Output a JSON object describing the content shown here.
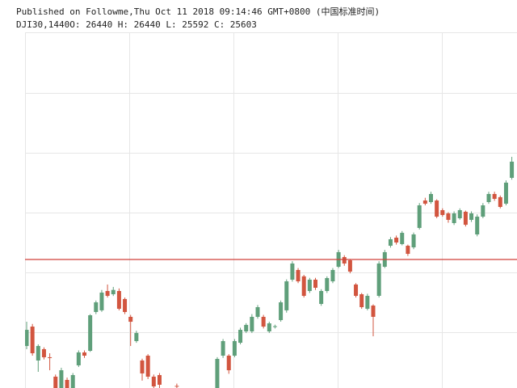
{
  "chart_data": {
    "type": "candlestick",
    "title": "Published on Followme,Thu Oct 11 2018 09:14:46 GMT+0800 (中国标准时间)",
    "symbol": "DJI30,1440",
    "summary": [
      {
        "label": "O:",
        "value": 26440
      },
      {
        "label": "H:",
        "value": 26440
      },
      {
        "label": "L:",
        "value": 25592
      },
      {
        "label": "C:",
        "value": 25603
      }
    ],
    "up_color": "#5f9f7a",
    "down_color": "#d2553f",
    "price_line_color": "#d0403a",
    "ylim": [
      23902,
      28610
    ],
    "open": [
      24458,
      24715,
      24266,
      24416,
      24309,
      24052,
      23880,
      24009,
      23880,
      24202,
      24373,
      24394,
      24908,
      24930,
      25186,
      25143,
      25186,
      25080,
      24844,
      24523,
      24266,
      24330,
      24052,
      24073,
      null,
      null,
      23930,
      null,
      null,
      null,
      null,
      null,
      null,
      23880,
      24330,
      24330,
      24330,
      24501,
      24651,
      24651,
      24844,
      24844,
      24651,
      24715,
      24801,
      24930,
      25336,
      25464,
      25380,
      25186,
      25336,
      25015,
      25186,
      25314,
      25507,
      25635,
      25593,
      25272,
      25143,
      24951,
      24993,
      25122,
      25507,
      25785,
      25892,
      25807,
      25785,
      25764,
      26021,
      26384,
      26363,
      26384,
      26256,
      26213,
      26085,
      26149,
      26235,
      26128,
      25935,
      26170,
      26363,
      26470,
      26428,
      26342,
      26684
    ],
    "high": [
      24779,
      24750,
      24480,
      24440,
      24362,
      24080,
      24170,
      24040,
      24100,
      24400,
      24400,
      24880,
      25060,
      25200,
      25272,
      25240,
      25220,
      25100,
      24870,
      24660,
      24290,
      24350,
      24080,
      24100,
      null,
      null,
      23960,
      null,
      null,
      null,
      null,
      null,
      null,
      24310,
      24550,
      24350,
      24550,
      24700,
      24760,
      24880,
      25000,
      24870,
      24780,
      24740,
      25060,
      25340,
      25580,
      25490,
      25400,
      25360,
      25360,
      25210,
      25380,
      25490,
      25730,
      25660,
      25610,
      25290,
      25160,
      25150,
      25010,
      25580,
      25730,
      25900,
      25920,
      25980,
      25800,
      25960,
      26350,
      26420,
      26500,
      26400,
      26280,
      26230,
      26240,
      26280,
      26250,
      26240,
      26200,
      26350,
      26500,
      26500,
      26450,
      26650,
      26962
    ],
    "low": [
      24416,
      24330,
      24116,
      24280,
      24137,
      23850,
      23850,
      23850,
      23850,
      24180,
      24300,
      24380,
      24880,
      24910,
      25100,
      25120,
      24930,
      24880,
      24458,
      24500,
      24000,
      24020,
      23890,
      23900,
      null,
      null,
      23880,
      null,
      null,
      null,
      null,
      null,
      null,
      23850,
      24300,
      24090,
      24310,
      24480,
      24630,
      24630,
      24820,
      24690,
      24630,
      24690,
      24780,
      24900,
      25310,
      25290,
      25100,
      25160,
      25200,
      24990,
      25160,
      25290,
      25490,
      25520,
      25420,
      25100,
      24950,
      24930,
      24587,
      25100,
      25490,
      25760,
      25800,
      25790,
      25650,
      25740,
      26000,
      26320,
      26340,
      26150,
      26170,
      26090,
      26060,
      26130,
      26040,
      26100,
      25910,
      26150,
      26340,
      26380,
      26280,
      26320,
      26660
    ],
    "close": [
      24672,
      24362,
      24458,
      24309,
      24300,
      23902,
      24137,
      23902,
      24073,
      24373,
      24330,
      24865,
      25036,
      25165,
      25122,
      25200,
      24951,
      24908,
      24779,
      24630,
      24095,
      24052,
      23923,
      23945,
      null,
      null,
      23920,
      null,
      null,
      null,
      null,
      null,
      null,
      24287,
      24523,
      24137,
      24523,
      24672,
      24737,
      24844,
      24972,
      24715,
      24758,
      24720,
      25036,
      25314,
      25550,
      25314,
      25122,
      25336,
      25229,
      25186,
      25357,
      25464,
      25700,
      25550,
      25443,
      25122,
      24972,
      25122,
      24844,
      25550,
      25700,
      25871,
      25828,
      25956,
      25678,
      25935,
      26320,
      26342,
      26470,
      26170,
      26192,
      26128,
      26213,
      26256,
      26063,
      26213,
      26170,
      26320,
      26470,
      26406,
      26299,
      26620,
      26898
    ]
  }
}
